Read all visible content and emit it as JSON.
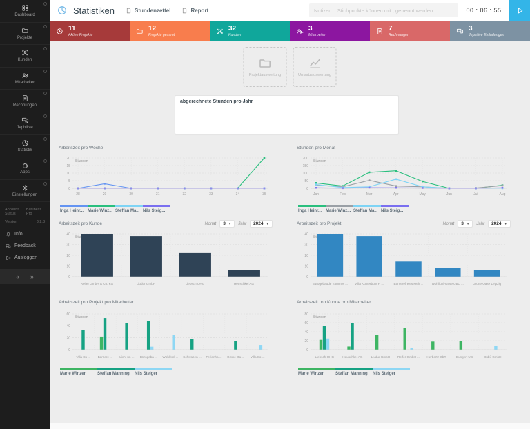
{
  "header": {
    "title": "Statistiken",
    "tabs": [
      {
        "label": "Stundenzettel"
      },
      {
        "label": "Report"
      }
    ],
    "search_placeholder": "Notizen... Stichpunkte können mit ; getrennt werden",
    "timer": "00 : 06 : 55"
  },
  "sidebar": {
    "items": [
      {
        "label": "Dashboard",
        "icon": "dashboard"
      },
      {
        "label": "Projekte",
        "icon": "folder"
      },
      {
        "label": "Kunden",
        "icon": "customer"
      },
      {
        "label": "Mitarbeiter",
        "icon": "team"
      },
      {
        "label": "Rechnungen",
        "icon": "invoice"
      },
      {
        "label": "Jephilive",
        "icon": "chat"
      },
      {
        "label": "Statistik",
        "icon": "pie"
      },
      {
        "label": "Apps",
        "icon": "puzzle"
      },
      {
        "label": "Einstellungen",
        "icon": "gear"
      }
    ],
    "account_status_label": "Account Status",
    "account_status_value": "Business Pro",
    "version_label": "Version",
    "version_value": "3.2.8",
    "menu": [
      {
        "label": "Info",
        "icon": "bell"
      },
      {
        "label": "Feedback",
        "icon": "chat"
      },
      {
        "label": "Ausloggen",
        "icon": "logout"
      }
    ],
    "collapse_left": "«",
    "collapse_right": "»"
  },
  "stat_cards": [
    {
      "value": "11",
      "label": "Aktive Projekte",
      "color": "#a63a3a",
      "icon": "clock"
    },
    {
      "value": "12",
      "label": "Projekte gesamt",
      "color": "#f87d4d",
      "icon": "folder"
    },
    {
      "value": "32",
      "label": "Kunden",
      "color": "#10a79b",
      "icon": "customer"
    },
    {
      "value": "3",
      "label": "Mitarbeiter",
      "color": "#8c16a0",
      "icon": "team"
    },
    {
      "value": "7",
      "label": "Rechnungen",
      "color": "#d96868",
      "icon": "invoice"
    },
    {
      "value": "3",
      "label": "Jephilive Einladungen",
      "color": "#7d92a3",
      "icon": "chat"
    }
  ],
  "action_buttons": [
    {
      "label": "Projektauswertung",
      "icon": "folder"
    },
    {
      "label": "Umsatzauswertung",
      "icon": "linechart"
    }
  ],
  "panel": {
    "title": "abgerechnete Stunden pro Jahr"
  },
  "selects": {
    "monat_label": "Monat",
    "monat_value": "3",
    "jahr_label": "Jahr",
    "jahr_value": "2024"
  },
  "chart_data": [
    {
      "type": "line",
      "title": "Arbeitszeit pro Woche",
      "ylabel": "Stunden",
      "ylim": [
        0,
        20
      ],
      "yticks": [
        0,
        5,
        10,
        15,
        20
      ],
      "x": [
        "28",
        "29",
        "30",
        "31",
        "32",
        "33",
        "34",
        "35"
      ],
      "series": [
        {
          "name": "Inga Heinr...",
          "color": "#6494f2",
          "values": [
            0,
            3,
            0,
            0,
            0,
            0,
            0,
            0
          ]
        },
        {
          "name": "Marie Winz...",
          "color": "#2abf7e",
          "values": [
            0,
            0,
            0,
            0,
            0,
            0,
            0,
            20
          ]
        },
        {
          "name": "Steffan Ma...",
          "color": "#7fd4f5",
          "values": [
            0,
            0,
            0,
            0,
            0,
            0,
            0,
            0
          ]
        },
        {
          "name": "Nils Steig...",
          "color": "#7a6ff0",
          "values": [
            0,
            0,
            0,
            0,
            0,
            0,
            0,
            0
          ]
        }
      ]
    },
    {
      "type": "line",
      "title": "Stunden pro Monat",
      "ylabel": "Stunden",
      "ylim": [
        0,
        200
      ],
      "yticks": [
        0,
        50,
        100,
        150,
        200
      ],
      "x": [
        "Jan",
        "Feb",
        "Mar",
        "Apr",
        "May",
        "Jun",
        "Jul",
        "Aug"
      ],
      "series": [
        {
          "name": "Inga Heinr...",
          "color": "#2abf7e",
          "values": [
            35,
            15,
            105,
            115,
            45,
            0,
            0,
            20
          ]
        },
        {
          "name": "Marie Winz...",
          "color": "#9aa0a6",
          "values": [
            20,
            10,
            52,
            15,
            10,
            0,
            2,
            18
          ]
        },
        {
          "name": "Steffan Ma...",
          "color": "#7fd4f5",
          "values": [
            25,
            5,
            10,
            60,
            10,
            0,
            0,
            0
          ]
        },
        {
          "name": "Nils Steig...",
          "color": "#7a6ff0",
          "values": [
            3,
            1,
            4,
            3,
            2,
            0,
            0,
            3
          ]
        }
      ]
    },
    {
      "type": "bar",
      "title": "Arbeitszeit pro Kunde",
      "ylabel": "Stunden",
      "ylim": [
        0,
        40
      ],
      "yticks": [
        0,
        10,
        20,
        30,
        40
      ],
      "color": "#2f4356",
      "has_selects": true,
      "categories": [
        "Reifer GmbH & Co. KG",
        "Liudur GmbH",
        "Liebsch OHG",
        "Heuschkel AG"
      ],
      "values": [
        40,
        38,
        22,
        6
      ]
    },
    {
      "type": "bar",
      "title": "Arbeitszeit pro Projekt",
      "ylabel": "Stunden",
      "ylim": [
        0,
        40
      ],
      "yticks": [
        0,
        10,
        20,
        30,
        40
      ],
      "color": "#3287c2",
      "has_selects": true,
      "categories": [
        "Bürogebäude Kommer ...",
        "Villa Kunterbunt H ...",
        "Barrierefreies Meh ...",
        "Wohlfühl-Oase UBC ...",
        "Grüne Oase Leipzig"
      ],
      "values": [
        40,
        38,
        14,
        8,
        6
      ]
    },
    {
      "type": "grouped_bar",
      "title": "Arbeitszeit pro Projekt pro Mitarbeiter",
      "ylabel": "Stunden",
      "ylim": [
        0,
        60
      ],
      "yticks": [
        0,
        20,
        40,
        60
      ],
      "categories": [
        "Villa Ku ...",
        "Barriere ...",
        "Licht un ...",
        "Bürogebä ...",
        "Wohlfühl ...",
        "Schwaben ...",
        "Ferienha ...",
        "Grüne Oa ...",
        "Villa So ..."
      ],
      "series": [
        {
          "name": "Marie Winzer",
          "color": "#3eb563",
          "values": [
            0,
            22,
            0,
            0,
            0,
            0,
            0,
            0,
            0
          ]
        },
        {
          "name": "Steffan Manning",
          "color": "#16a283",
          "values": [
            33,
            53,
            45,
            48,
            0,
            18,
            0,
            15,
            0
          ]
        },
        {
          "name": "Nils Steiger",
          "color": "#8ed7f4",
          "values": [
            0,
            0,
            0,
            5,
            25,
            0,
            0,
            0,
            8
          ]
        }
      ]
    },
    {
      "type": "grouped_bar",
      "title": "Arbeitszeit pro Kunde pro Mitarbeiter",
      "ylabel": "Stunden",
      "ylim": [
        0,
        80
      ],
      "yticks": [
        0,
        20,
        40,
        60,
        80
      ],
      "categories": [
        "Liebsch OHG",
        "Heuschkel AG",
        "Liudur GmbH",
        "Reifer GmbH ...",
        "Herbertz GbR",
        "Bungert UG",
        "Dubù GmbH"
      ],
      "series": [
        {
          "name": "Marie Winzer",
          "color": "#3eb563",
          "values": [
            22,
            7,
            33,
            48,
            18,
            20,
            0
          ]
        },
        {
          "name": "Steffan Manning",
          "color": "#16a283",
          "values": [
            53,
            60,
            0,
            0,
            0,
            0,
            0
          ]
        },
        {
          "name": "Nils Steiger",
          "color": "#8ed7f4",
          "values": [
            25,
            0,
            0,
            4,
            0,
            0,
            8
          ]
        }
      ]
    }
  ]
}
